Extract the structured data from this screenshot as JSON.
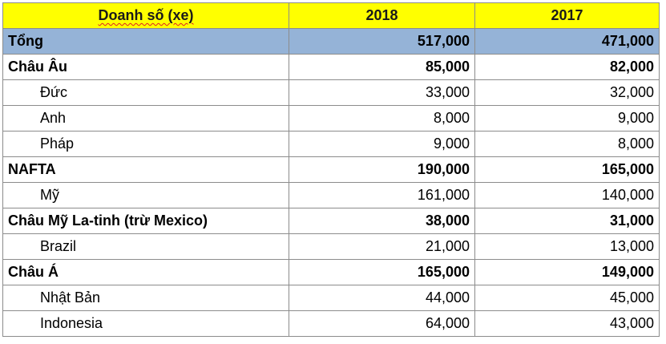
{
  "table": {
    "header": [
      "Doanh số (xe)",
      "2018",
      "2017"
    ],
    "rows": [
      [
        "Tổng",
        "517,000",
        "471,000"
      ],
      [
        "Châu Âu",
        "85,000",
        "82,000"
      ],
      [
        "Đức",
        "33,000",
        "32,000"
      ],
      [
        "Anh",
        "8,000",
        "9,000"
      ],
      [
        "Pháp",
        "9,000",
        "8,000"
      ],
      [
        "NAFTA",
        "190,000",
        "165,000"
      ],
      [
        "Mỹ",
        "161,000",
        "140,000"
      ],
      [
        "Châu Mỹ La-tinh (trừ Mexico)",
        "38,000",
        "31,000"
      ],
      [
        "Brazil",
        "21,000",
        "13,000"
      ],
      [
        "Châu Á",
        "165,000",
        "149,000"
      ],
      [
        "Nhật Bản",
        "44,000",
        "45,000"
      ],
      [
        "Indonesia",
        "64,000",
        "43,000"
      ]
    ]
  }
}
